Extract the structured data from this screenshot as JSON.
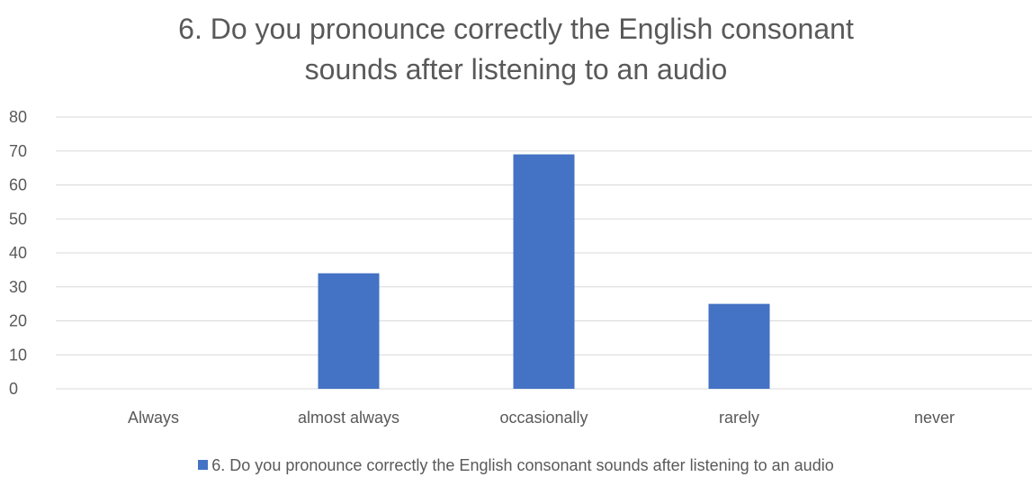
{
  "chart_data": {
    "type": "bar",
    "title_lines": [
      "6. Do you pronounce correctly the English consonant",
      "sounds after listening to an audio"
    ],
    "categories": [
      "Always",
      "almost always",
      "occasionally",
      "rarely",
      "never"
    ],
    "series": [
      {
        "name": "6. Do you pronounce correctly the English consonant sounds after listening to an audio",
        "values": [
          0,
          34,
          69,
          25,
          0
        ]
      }
    ],
    "ylim": [
      0,
      80
    ],
    "yticks": [
      "0",
      "10",
      "20",
      "30",
      "40",
      "50",
      "60",
      "70",
      "80"
    ],
    "grid": true,
    "legend_position": "bottom",
    "colors": {
      "bar": "#4472C4",
      "grid": "#D9D9D9",
      "text": "#595959"
    }
  }
}
